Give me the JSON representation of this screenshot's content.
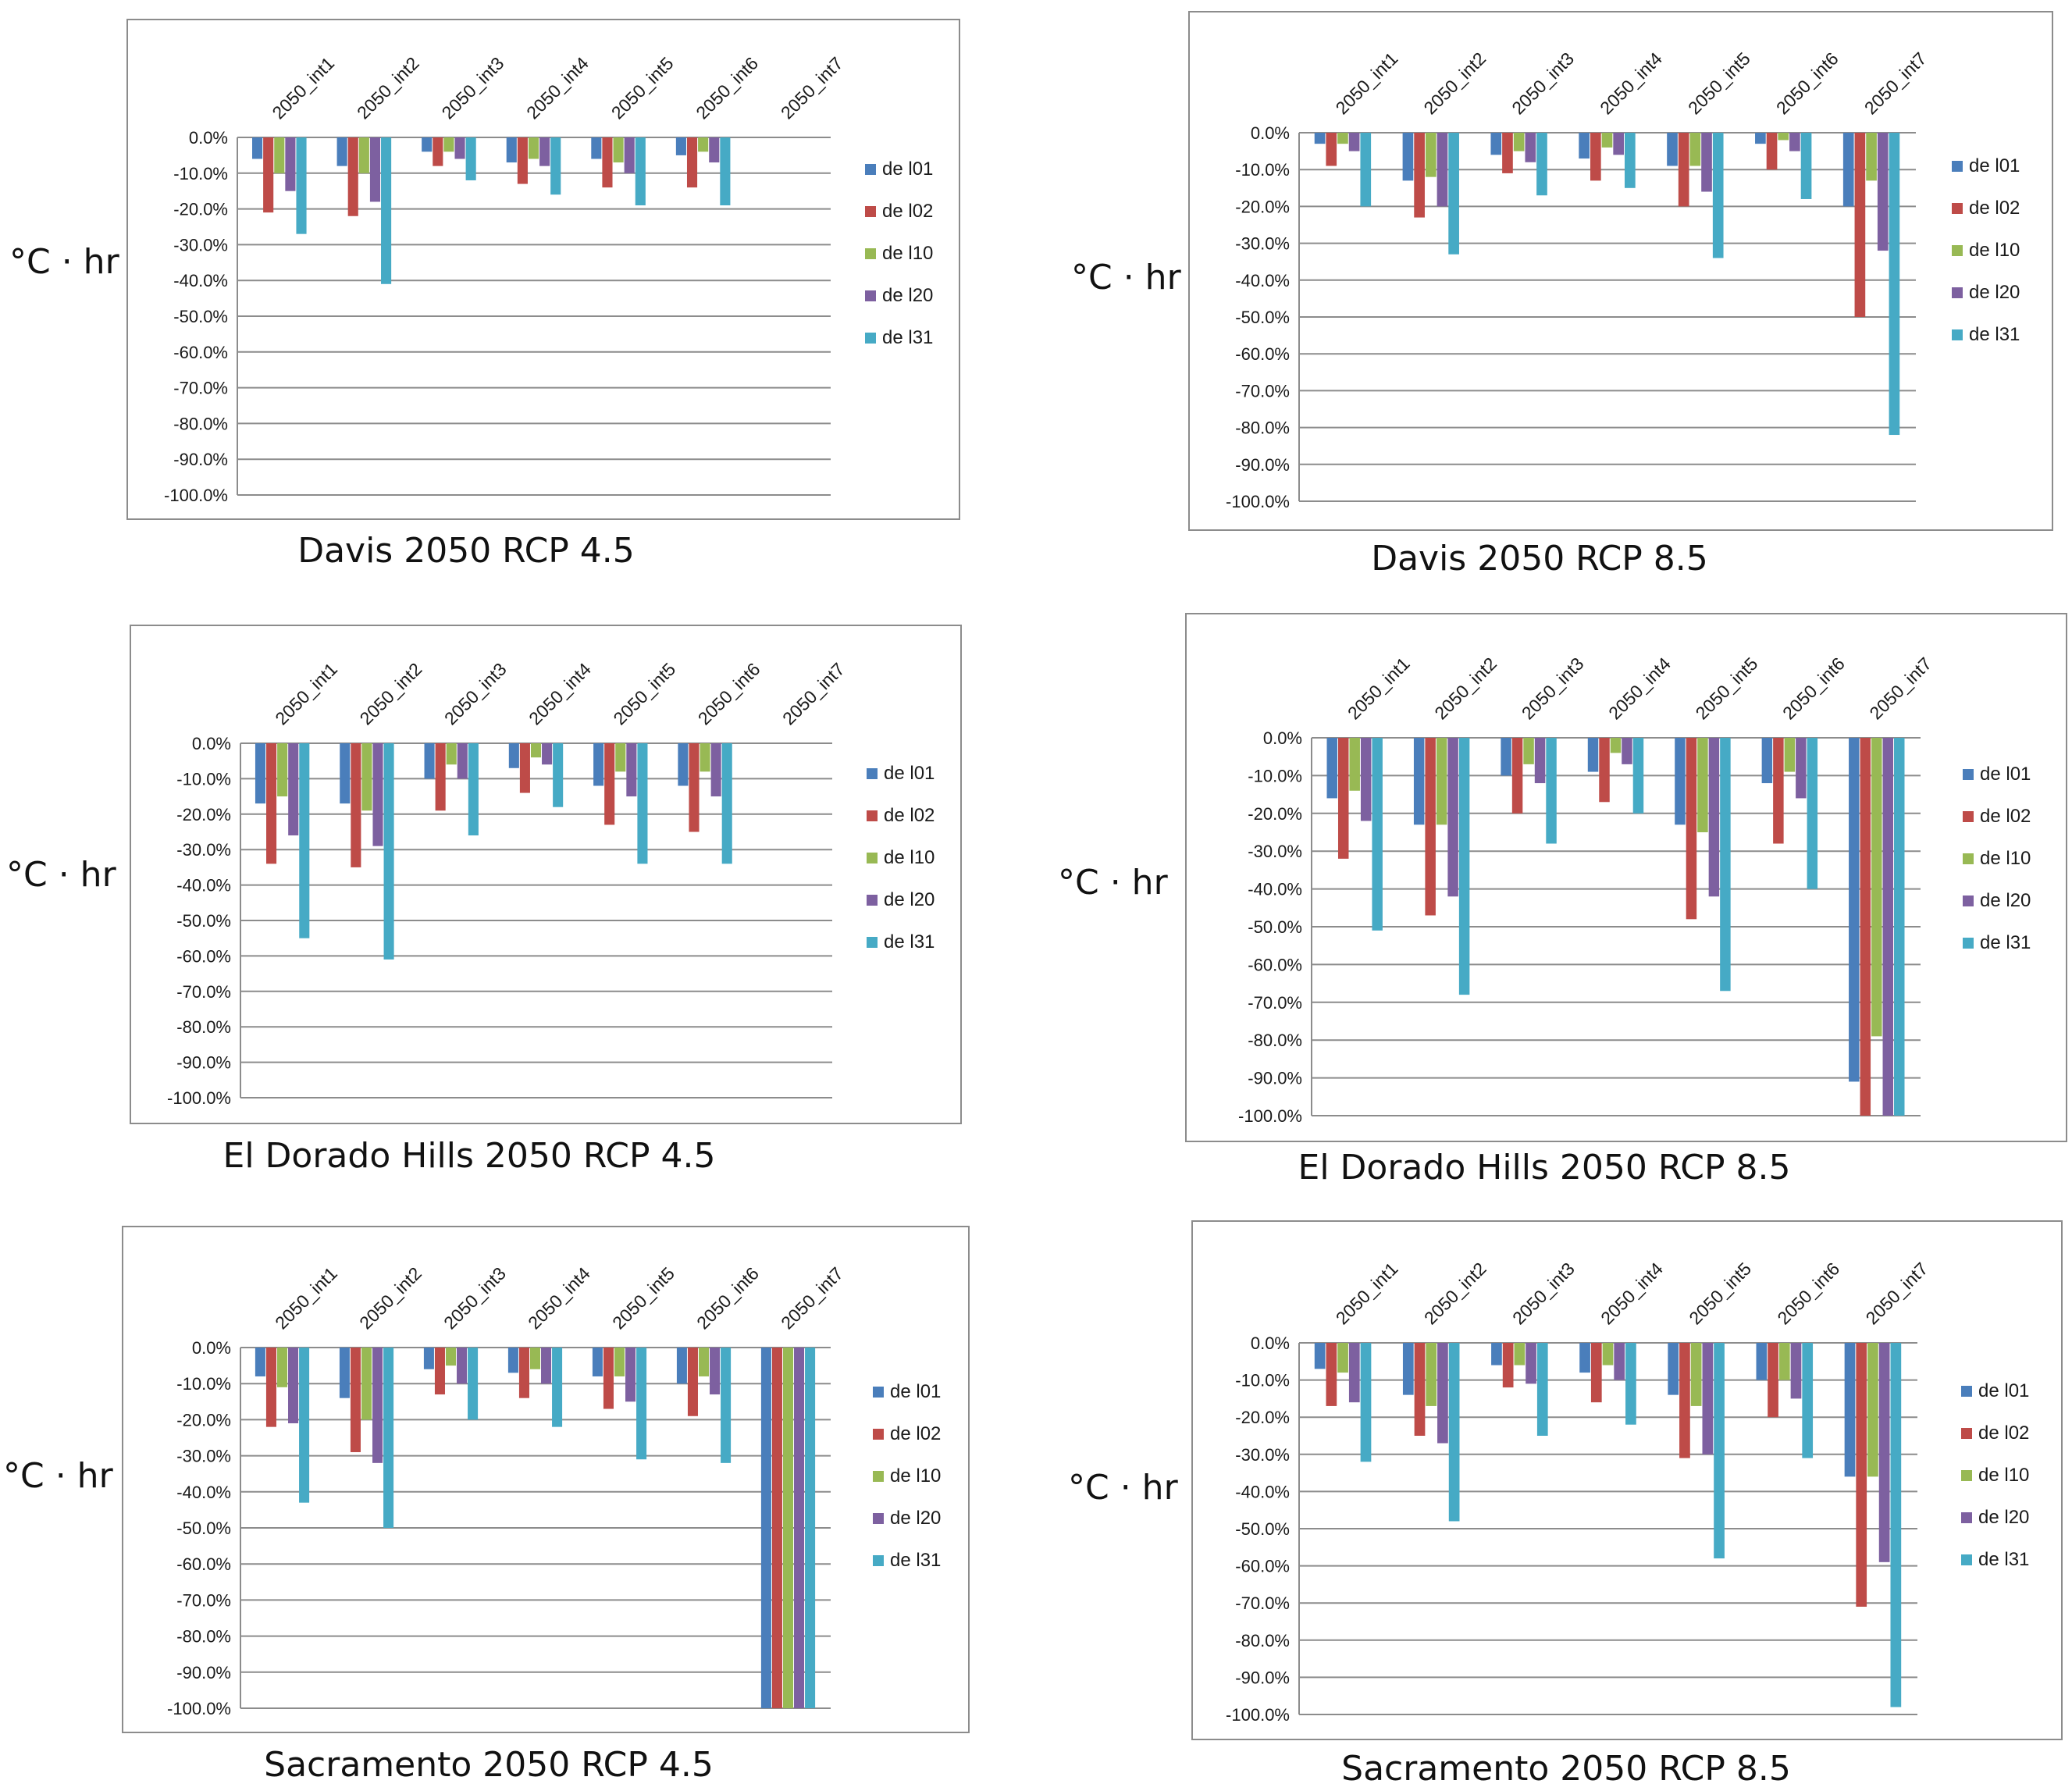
{
  "unit_label": "°C · hr",
  "categories": [
    "2050_int1",
    "2050_int2",
    "2050_int3",
    "2050_int4",
    "2050_int5",
    "2050_int6",
    "2050_int7"
  ],
  "series_names": [
    "de l01",
    "de l02",
    "de l10",
    "de l20",
    "de l31"
  ],
  "colors": [
    "#4a7ebb",
    "#be4b48",
    "#98b954",
    "#7d60a0",
    "#46aac5"
  ],
  "y_ticks": [
    "0.0%",
    "-10.0%",
    "-20.0%",
    "-30.0%",
    "-40.0%",
    "-50.0%",
    "-60.0%",
    "-70.0%",
    "-80.0%",
    "-90.0%",
    "-100.0%"
  ],
  "chart_data": [
    {
      "type": "bar",
      "title": "Davis 2050 RCP 4.5",
      "ylim": [
        -100,
        0
      ],
      "categories": [
        "2050_int1",
        "2050_int2",
        "2050_int3",
        "2050_int4",
        "2050_int5",
        "2050_int6",
        "2050_int7"
      ],
      "series": [
        {
          "name": "de l01",
          "values": [
            -6,
            -8,
            -4,
            -7,
            -6,
            -5,
            0
          ]
        },
        {
          "name": "de l02",
          "values": [
            -21,
            -22,
            -8,
            -13,
            -14,
            -14,
            0
          ]
        },
        {
          "name": "de l10",
          "values": [
            -10,
            -10,
            -4,
            -6,
            -7,
            -4,
            0
          ]
        },
        {
          "name": "de l20",
          "values": [
            -15,
            -18,
            -6,
            -8,
            -10,
            -7,
            0
          ]
        },
        {
          "name": "de l31",
          "values": [
            -27,
            -41,
            -12,
            -16,
            -19,
            -19,
            0
          ]
        }
      ]
    },
    {
      "type": "bar",
      "title": "Davis 2050 RCP 8.5",
      "ylim": [
        -100,
        0
      ],
      "categories": [
        "2050_int1",
        "2050_int2",
        "2050_int3",
        "2050_int4",
        "2050_int5",
        "2050_int6",
        "2050_int7"
      ],
      "series": [
        {
          "name": "de l01",
          "values": [
            -3,
            -13,
            -6,
            -7,
            -9,
            -3,
            -20
          ]
        },
        {
          "name": "de l02",
          "values": [
            -9,
            -23,
            -11,
            -13,
            -20,
            -10,
            -50
          ]
        },
        {
          "name": "de l10",
          "values": [
            -3,
            -12,
            -5,
            -4,
            -9,
            -2,
            -13
          ]
        },
        {
          "name": "de l20",
          "values": [
            -5,
            -20,
            -8,
            -6,
            -16,
            -5,
            -32
          ]
        },
        {
          "name": "de l31",
          "values": [
            -20,
            -33,
            -17,
            -15,
            -34,
            -18,
            -82
          ]
        }
      ]
    },
    {
      "type": "bar",
      "title": "El Dorado Hills 2050 RCP 4.5",
      "ylim": [
        -100,
        0
      ],
      "categories": [
        "2050_int1",
        "2050_int2",
        "2050_int3",
        "2050_int4",
        "2050_int5",
        "2050_int6",
        "2050_int7"
      ],
      "series": [
        {
          "name": "de l01",
          "values": [
            -17,
            -17,
            -10,
            -7,
            -12,
            -12,
            0
          ]
        },
        {
          "name": "de l02",
          "values": [
            -34,
            -35,
            -19,
            -14,
            -23,
            -25,
            0
          ]
        },
        {
          "name": "de l10",
          "values": [
            -15,
            -19,
            -6,
            -4,
            -8,
            -8,
            0
          ]
        },
        {
          "name": "de l20",
          "values": [
            -26,
            -29,
            -10,
            -6,
            -15,
            -15,
            0
          ]
        },
        {
          "name": "de l31",
          "values": [
            -55,
            -61,
            -26,
            -18,
            -34,
            -34,
            0
          ]
        }
      ]
    },
    {
      "type": "bar",
      "title": "El Dorado Hills 2050 RCP 8.5",
      "ylim": [
        -100,
        0
      ],
      "categories": [
        "2050_int1",
        "2050_int2",
        "2050_int3",
        "2050_int4",
        "2050_int5",
        "2050_int6",
        "2050_int7"
      ],
      "series": [
        {
          "name": "de l01",
          "values": [
            -16,
            -23,
            -10,
            -9,
            -23,
            -12,
            -91
          ]
        },
        {
          "name": "de l02",
          "values": [
            -32,
            -47,
            -20,
            -17,
            -48,
            -28,
            -100
          ]
        },
        {
          "name": "de l10",
          "values": [
            -14,
            -23,
            -7,
            -4,
            -25,
            -9,
            -79
          ]
        },
        {
          "name": "de l20",
          "values": [
            -22,
            -42,
            -12,
            -7,
            -42,
            -16,
            -100
          ]
        },
        {
          "name": "de l31",
          "values": [
            -51,
            -68,
            -28,
            -20,
            -67,
            -40,
            -100
          ]
        }
      ]
    },
    {
      "type": "bar",
      "title": "Sacramento 2050 RCP 4.5",
      "ylim": [
        -100,
        0
      ],
      "categories": [
        "2050_int1",
        "2050_int2",
        "2050_int3",
        "2050_int4",
        "2050_int5",
        "2050_int6",
        "2050_int7"
      ],
      "series": [
        {
          "name": "de l01",
          "values": [
            -8,
            -14,
            -6,
            -7,
            -8,
            -10,
            -100
          ]
        },
        {
          "name": "de l02",
          "values": [
            -22,
            -29,
            -13,
            -14,
            -17,
            -19,
            -100
          ]
        },
        {
          "name": "de l10",
          "values": [
            -11,
            -20,
            -5,
            -6,
            -8,
            -8,
            -100
          ]
        },
        {
          "name": "de l20",
          "values": [
            -21,
            -32,
            -10,
            -10,
            -15,
            -13,
            -100
          ]
        },
        {
          "name": "de l31",
          "values": [
            -43,
            -50,
            -20,
            -22,
            -31,
            -32,
            -100
          ]
        }
      ]
    },
    {
      "type": "bar",
      "title": "Sacramento 2050 RCP 8.5",
      "ylim": [
        -100,
        0
      ],
      "categories": [
        "2050_int1",
        "2050_int2",
        "2050_int3",
        "2050_int4",
        "2050_int5",
        "2050_int6",
        "2050_int7"
      ],
      "series": [
        {
          "name": "de l01",
          "values": [
            -7,
            -14,
            -6,
            -8,
            -14,
            -10,
            -36
          ]
        },
        {
          "name": "de l02",
          "values": [
            -17,
            -25,
            -12,
            -16,
            -31,
            -20,
            -71
          ]
        },
        {
          "name": "de l10",
          "values": [
            -8,
            -17,
            -6,
            -6,
            -17,
            -10,
            -36
          ]
        },
        {
          "name": "de l20",
          "values": [
            -16,
            -27,
            -11,
            -10,
            -30,
            -15,
            -59
          ]
        },
        {
          "name": "de l31",
          "values": [
            -32,
            -48,
            -25,
            -22,
            -58,
            -31,
            -98
          ]
        }
      ]
    }
  ]
}
